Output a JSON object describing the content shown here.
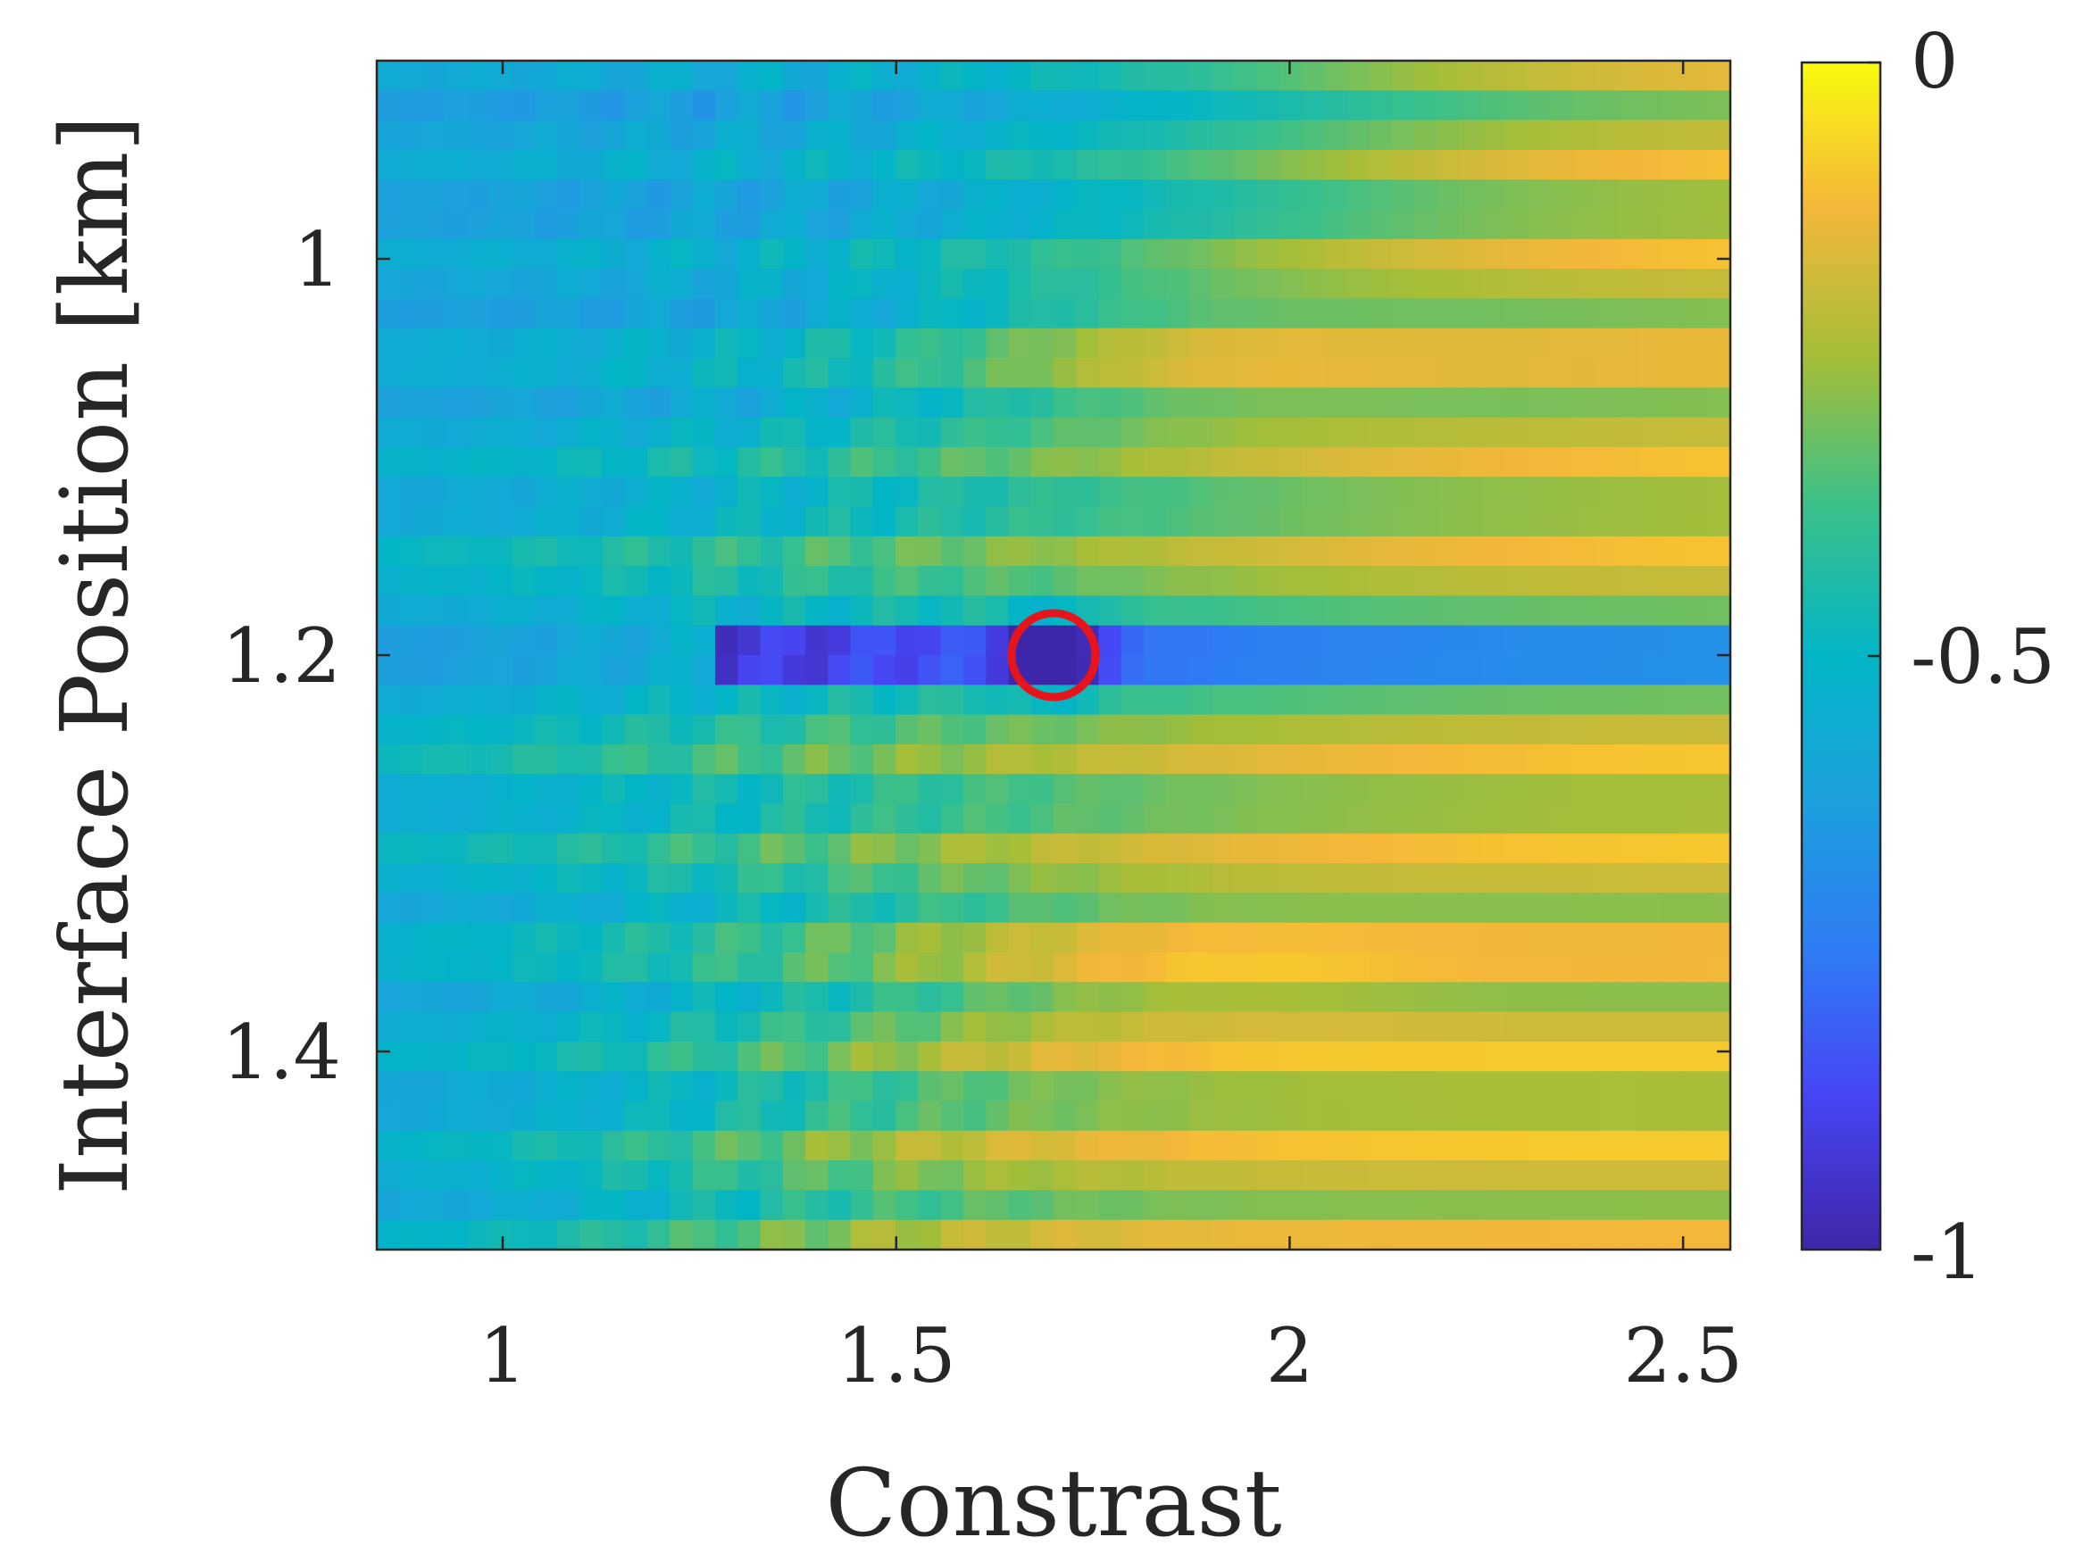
{
  "chart_data": {
    "type": "heatmap",
    "xlabel": "Constrast",
    "ylabel": "Interface Position [km]",
    "xlim": [
      0.84,
      2.56
    ],
    "ylim": [
      0.9,
      1.5
    ],
    "y_reversed": true,
    "x_ticks": [
      {
        "value": 1,
        "label": "1"
      },
      {
        "value": 1.5,
        "label": "1.5"
      },
      {
        "value": 2,
        "label": "2"
      },
      {
        "value": 2.5,
        "label": "2.5"
      }
    ],
    "y_ticks": [
      {
        "value": 1.0,
        "label": "1"
      },
      {
        "value": 1.2,
        "label": "1.2"
      },
      {
        "value": 1.4,
        "label": "1.4"
      }
    ],
    "x_cells": 60,
    "y_cells": 40,
    "colormap": "parula",
    "colorbar": {
      "range": [
        -1,
        0
      ],
      "ticks": [
        {
          "value": 0,
          "label": "0"
        },
        {
          "value": -0.5,
          "label": "-0.5"
        },
        {
          "value": -1,
          "label": "-1"
        }
      ]
    },
    "minimum_marker": {
      "x": 1.7,
      "y": 1.2,
      "color": "#e8141c"
    },
    "grid": false
  }
}
